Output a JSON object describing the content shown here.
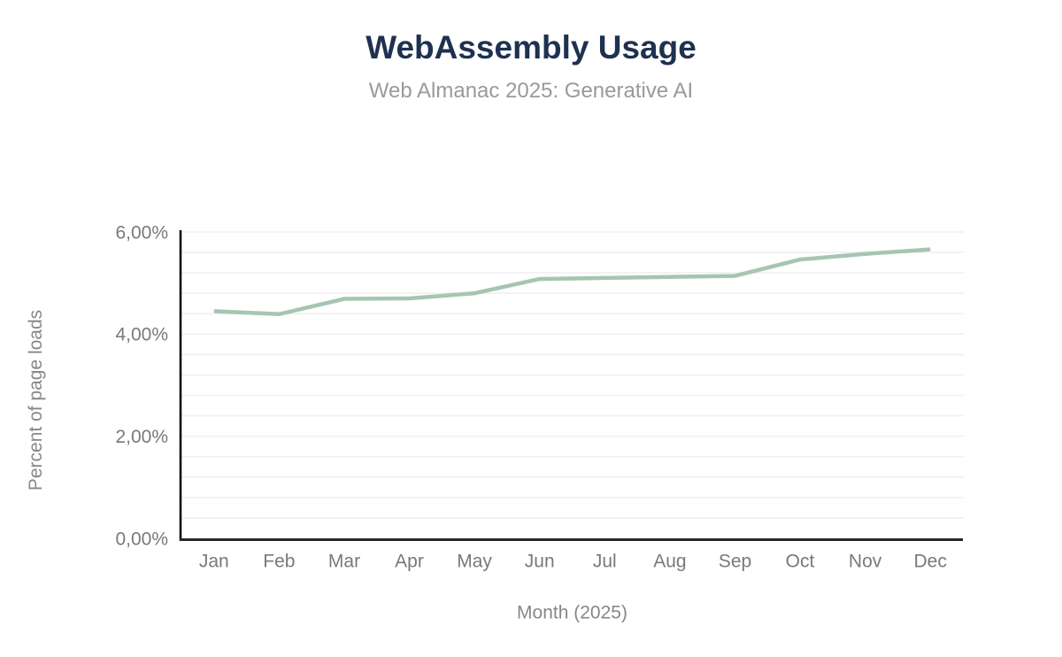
{
  "header": {
    "title": "WebAssembly Usage",
    "subtitle": "Web Almanac 2025: Generative AI"
  },
  "chart_data": {
    "type": "line",
    "title": "WebAssembly Usage",
    "subtitle": "Web Almanac 2025: Generative AI",
    "categories": [
      "Jan",
      "Feb",
      "Mar",
      "Apr",
      "May",
      "Jun",
      "Jul",
      "Aug",
      "Sep",
      "Oct",
      "Nov",
      "Dec"
    ],
    "series": [
      {
        "name": "Percent of page loads",
        "values": [
          4.45,
          4.39,
          4.69,
          4.7,
          4.8,
          5.08,
          5.1,
          5.12,
          5.14,
          5.46,
          5.57,
          5.66
        ]
      }
    ],
    "xlabel": "Month (2025)",
    "ylabel": "Percent of page loads",
    "ylim": [
      0,
      6
    ],
    "y_ticks": [
      {
        "value": 0,
        "label": "0,00%"
      },
      {
        "value": 2,
        "label": "2,00%"
      },
      {
        "value": 4,
        "label": "4,00%"
      },
      {
        "value": 6,
        "label": "6,00%"
      }
    ],
    "minor_grid_step": 0.4,
    "grid": true,
    "legend_position": "none",
    "colors": {
      "line": "#a6c5b2",
      "title": "#1e3151",
      "subtitle": "#9a9a9a",
      "tick_label": "#77797e",
      "axis_title": "#85878a",
      "y_axis_line": "#000000",
      "x_axis_line": "#26262b",
      "gridline": "#f0f0f0",
      "background": "#ffffff"
    }
  }
}
